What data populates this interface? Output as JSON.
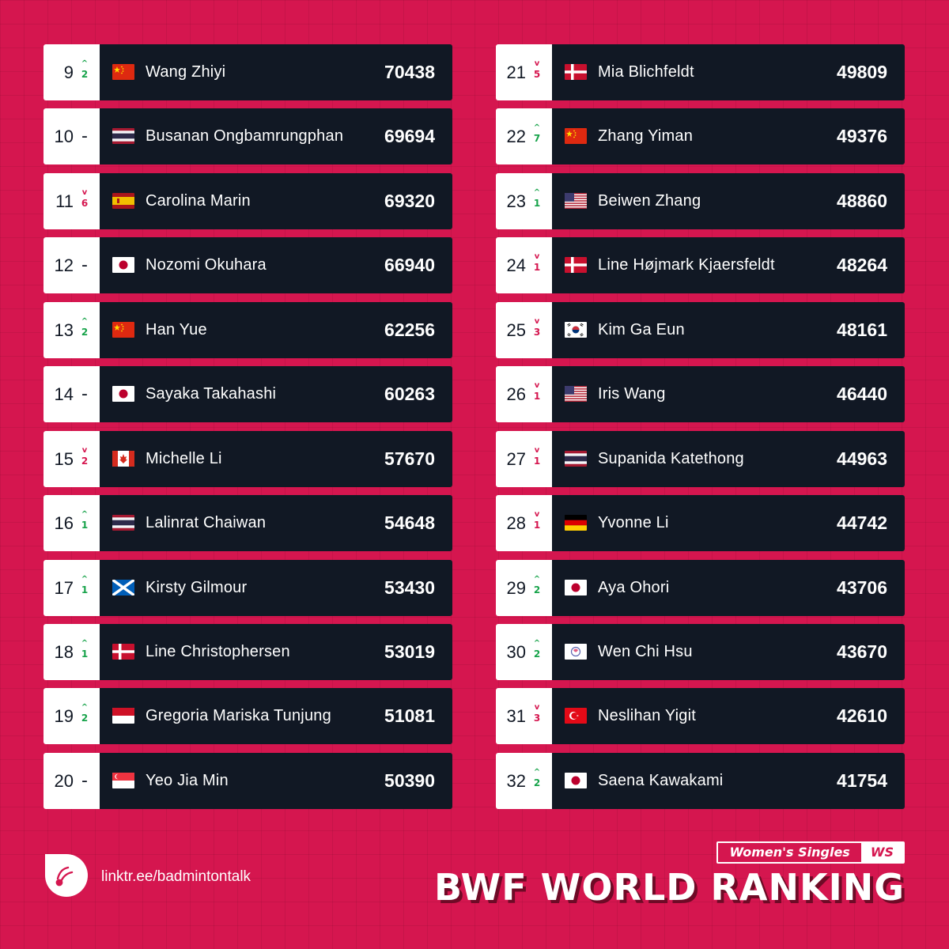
{
  "rankings_left": [
    {
      "rank": "9",
      "dir": "up",
      "change": "2",
      "flag": "cn",
      "name": "Wang Zhiyi",
      "points": "70438"
    },
    {
      "rank": "10",
      "dir": "same",
      "change": "-",
      "flag": "th",
      "name": "Busanan Ongbamrungphan",
      "points": "69694"
    },
    {
      "rank": "11",
      "dir": "down",
      "change": "6",
      "flag": "es",
      "name": "Carolina Marin",
      "points": "69320"
    },
    {
      "rank": "12",
      "dir": "same",
      "change": "-",
      "flag": "jp",
      "name": "Nozomi Okuhara",
      "points": "66940"
    },
    {
      "rank": "13",
      "dir": "up",
      "change": "2",
      "flag": "cn",
      "name": "Han Yue",
      "points": "62256"
    },
    {
      "rank": "14",
      "dir": "same",
      "change": "-",
      "flag": "jp",
      "name": "Sayaka Takahashi",
      "points": "60263"
    },
    {
      "rank": "15",
      "dir": "down",
      "change": "2",
      "flag": "ca",
      "name": "Michelle Li",
      "points": "57670"
    },
    {
      "rank": "16",
      "dir": "up",
      "change": "1",
      "flag": "th",
      "name": "Lalinrat Chaiwan",
      "points": "54648"
    },
    {
      "rank": "17",
      "dir": "up",
      "change": "1",
      "flag": "sco",
      "name": "Kirsty Gilmour",
      "points": "53430"
    },
    {
      "rank": "18",
      "dir": "up",
      "change": "1",
      "flag": "dk",
      "name": "Line Christophersen",
      "points": "53019"
    },
    {
      "rank": "19",
      "dir": "up",
      "change": "2",
      "flag": "id",
      "name": "Gregoria Mariska Tunjung",
      "points": "51081"
    },
    {
      "rank": "20",
      "dir": "same",
      "change": "-",
      "flag": "sg",
      "name": "Yeo Jia Min",
      "points": "50390"
    }
  ],
  "rankings_right": [
    {
      "rank": "21",
      "dir": "down",
      "change": "5",
      "flag": "dk",
      "name": "Mia Blichfeldt",
      "points": "49809"
    },
    {
      "rank": "22",
      "dir": "up",
      "change": "7",
      "flag": "cn",
      "name": "Zhang Yiman",
      "points": "49376"
    },
    {
      "rank": "23",
      "dir": "up",
      "change": "1",
      "flag": "us",
      "name": "Beiwen Zhang",
      "points": "48860"
    },
    {
      "rank": "24",
      "dir": "down",
      "change": "1",
      "flag": "dk",
      "name": "Line Højmark Kjaersfeldt",
      "points": "48264"
    },
    {
      "rank": "25",
      "dir": "down",
      "change": "3",
      "flag": "kr",
      "name": "Kim Ga Eun",
      "points": "48161"
    },
    {
      "rank": "26",
      "dir": "down",
      "change": "1",
      "flag": "us",
      "name": "Iris Wang",
      "points": "46440"
    },
    {
      "rank": "27",
      "dir": "down",
      "change": "1",
      "flag": "th",
      "name": "Supanida Katethong",
      "points": "44963"
    },
    {
      "rank": "28",
      "dir": "down",
      "change": "1",
      "flag": "de",
      "name": "Yvonne Li",
      "points": "44742"
    },
    {
      "rank": "29",
      "dir": "up",
      "change": "2",
      "flag": "jp",
      "name": "Aya Ohori",
      "points": "43706"
    },
    {
      "rank": "30",
      "dir": "up",
      "change": "2",
      "flag": "tw",
      "name": "Wen Chi Hsu",
      "points": "43670"
    },
    {
      "rank": "31",
      "dir": "down",
      "change": "3",
      "flag": "tr",
      "name": "Neslihan Yigit",
      "points": "42610"
    },
    {
      "rank": "32",
      "dir": "up",
      "change": "2",
      "flag": "jp",
      "name": "Saena Kawakami",
      "points": "41754"
    }
  ],
  "footer": {
    "link": "linktr.ee/badmintontalk",
    "category": "Women's Singles",
    "category_code": "WS",
    "headline": "BWF WORLD RANKING",
    "logo_icon": "badminton-talk-logo-icon"
  },
  "colors": {
    "background": "#d5164f",
    "card": "#111824",
    "up": "#17a34a",
    "down": "#d5164f"
  }
}
